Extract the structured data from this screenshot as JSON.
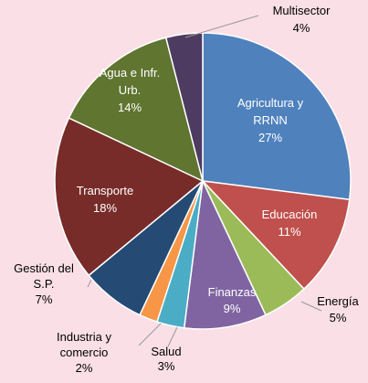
{
  "chart_data": {
    "type": "pie",
    "categories": [
      "Agricultura y\nRRNN",
      "Educación",
      "Energía",
      "Finanzas",
      "Salud",
      "Industria y\ncomercio",
      "Gestión del\nS.P.",
      "Transporte",
      "Agua e Infr.\nUrb.",
      "Multisector"
    ],
    "values": [
      27,
      11,
      5,
      9,
      3,
      2,
      7,
      18,
      14,
      4
    ],
    "value_labels": [
      "27%",
      "11%",
      "5%",
      "9%",
      "3%",
      "2%",
      "7%",
      "18%",
      "14%",
      "4%"
    ],
    "colors": [
      "#4f81bd",
      "#c0504d",
      "#9bbb59",
      "#8064a2",
      "#4bacc6",
      "#f79646",
      "#254a74",
      "#772c2a",
      "#5f7530",
      "#4d3b62"
    ]
  }
}
